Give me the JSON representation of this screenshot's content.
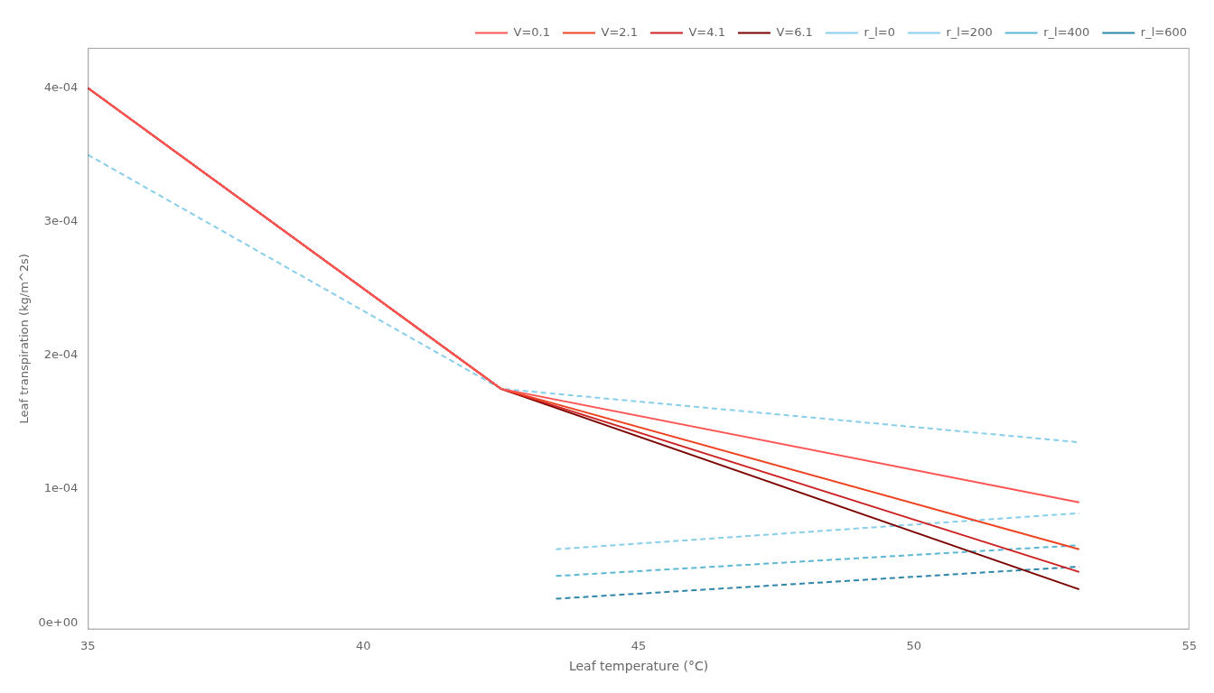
{
  "chart_data": {
    "type": "line",
    "x_label": "Leaf temperature (°C)",
    "y_label": "Leaf transpiration (kg/m^2s)",
    "xlim": [
      35,
      55
    ],
    "ylim": [
      -5e-06,
      0.00043
    ],
    "xticks": [
      35,
      40,
      45,
      50,
      55
    ],
    "yticks": [
      {
        "value": 0,
        "label": "0e+00"
      },
      {
        "value": 0.0001,
        "label": "1e-04"
      },
      {
        "value": 0.0002,
        "label": "2e-04"
      },
      {
        "value": 0.0003,
        "label": "3e-04"
      },
      {
        "value": 0.0004,
        "label": "4e-04"
      }
    ],
    "grid": false,
    "legend": "upper right",
    "series": [
      {
        "name": "V=0.1",
        "color": "#FF5555",
        "line_style": "solid",
        "x": [
          35,
          42.5,
          53.0
        ],
        "values": [
          0.0004,
          0.000175,
          9e-05
        ]
      },
      {
        "name": "V=2.1",
        "color": "#EE4422",
        "line_style": "solid",
        "x": [
          35,
          42.5,
          53.0
        ],
        "values": [
          0.0004,
          0.000175,
          5.5e-05
        ]
      },
      {
        "name": "V=4.1",
        "color": "#CC2222",
        "line_style": "solid",
        "x": [
          35,
          42.5,
          53.0
        ],
        "values": [
          0.0004,
          0.000175,
          3.8e-05
        ]
      },
      {
        "name": "V=6.1",
        "color": "#7B0000",
        "line_style": "solid",
        "x": [
          35,
          42.5,
          53.0
        ],
        "values": [
          0.0004,
          0.000175,
          2.5e-05
        ]
      },
      {
        "name": "r_l=0",
        "color": "#87CEEB",
        "line_style": "dashed",
        "x": [
          35,
          42.5,
          53.0
        ],
        "values": [
          0.00035,
          0.000175,
          0.000135
        ]
      },
      {
        "name": "r_l=200",
        "color": "#87CEEB",
        "line_style": "dashed",
        "x": [
          43.5,
          53.0
        ],
        "values": [
          5.5e-05,
          8.2e-05
        ]
      },
      {
        "name": "r_l=400",
        "color": "#5BB8D4",
        "line_style": "dashed",
        "x": [
          43.5,
          53.0
        ],
        "values": [
          3.5e-05,
          5.8e-05
        ]
      },
      {
        "name": "r_l=600",
        "color": "#2E86AB",
        "line_style": "dashed",
        "x": [
          43.5,
          53.0
        ],
        "values": [
          1.8e-05,
          4.2e-05
        ]
      }
    ]
  }
}
